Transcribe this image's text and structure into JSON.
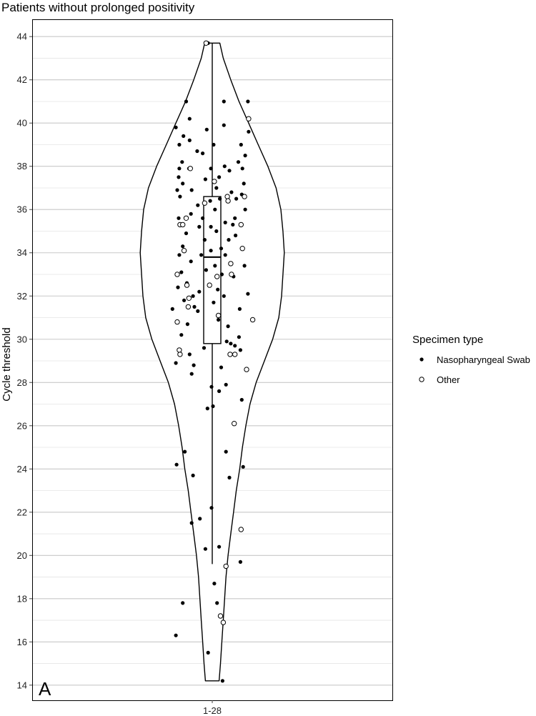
{
  "chart_data": {
    "type": "violin",
    "title": "Patients without prolonged positivity",
    "xlabel": "",
    "ylabel": "Cycle threshold",
    "categories": [
      "1-28"
    ],
    "ylim": [
      13.3,
      44.8
    ],
    "yticks": [
      14,
      16,
      18,
      20,
      22,
      24,
      26,
      28,
      30,
      32,
      34,
      36,
      38,
      40,
      42,
      44
    ],
    "ytick_labels": [
      "14",
      "16",
      "18",
      "20",
      "22",
      "24",
      "26",
      "28",
      "30",
      "32",
      "34",
      "36",
      "38",
      "40",
      "42",
      "44"
    ],
    "grid": true,
    "panel_label": "A",
    "legend": {
      "title": "Specimen type",
      "placement": "right",
      "entries": [
        {
          "label": "Nasopharyngeal Swab",
          "marker": "filled-circle"
        },
        {
          "label": "Other",
          "marker": "open-circle"
        }
      ]
    },
    "boxplot": {
      "q1": 29.8,
      "median": 33.8,
      "q3": 36.6,
      "whisker_low": 19.6,
      "whisker_high": 43.7
    },
    "violin_density": [
      {
        "y": 14.2,
        "halfwidth": 0.1
      },
      {
        "y": 15.0,
        "halfwidth": 0.12
      },
      {
        "y": 16.0,
        "halfwidth": 0.14
      },
      {
        "y": 17.0,
        "halfwidth": 0.16
      },
      {
        "y": 18.0,
        "halfwidth": 0.18
      },
      {
        "y": 19.0,
        "halfwidth": 0.2
      },
      {
        "y": 20.0,
        "halfwidth": 0.23
      },
      {
        "y": 21.0,
        "halfwidth": 0.27
      },
      {
        "y": 22.0,
        "halfwidth": 0.31
      },
      {
        "y": 23.0,
        "halfwidth": 0.35
      },
      {
        "y": 24.0,
        "halfwidth": 0.4
      },
      {
        "y": 25.0,
        "halfwidth": 0.44
      },
      {
        "y": 26.0,
        "halfwidth": 0.49
      },
      {
        "y": 27.0,
        "halfwidth": 0.55
      },
      {
        "y": 28.0,
        "halfwidth": 0.64
      },
      {
        "y": 29.0,
        "halfwidth": 0.76
      },
      {
        "y": 30.0,
        "halfwidth": 0.88
      },
      {
        "y": 31.0,
        "halfwidth": 0.97
      },
      {
        "y": 32.0,
        "halfwidth": 1.01
      },
      {
        "y": 33.0,
        "halfwidth": 1.03
      },
      {
        "y": 34.0,
        "halfwidth": 1.05
      },
      {
        "y": 35.0,
        "halfwidth": 1.03
      },
      {
        "y": 36.0,
        "halfwidth": 1.0
      },
      {
        "y": 37.0,
        "halfwidth": 0.93
      },
      {
        "y": 38.0,
        "halfwidth": 0.81
      },
      {
        "y": 39.0,
        "halfwidth": 0.67
      },
      {
        "y": 40.0,
        "halfwidth": 0.53
      },
      {
        "y": 41.0,
        "halfwidth": 0.39
      },
      {
        "y": 42.0,
        "halfwidth": 0.27
      },
      {
        "y": 43.0,
        "halfwidth": 0.16
      },
      {
        "y": 43.7,
        "halfwidth": 0.11
      }
    ],
    "series": [
      {
        "name": "Nasopharyngeal Swab",
        "points": [
          [
            -0.06,
            43.7
          ],
          [
            -0.38,
            41.0
          ],
          [
            0.17,
            41.0
          ],
          [
            0.52,
            41.0
          ],
          [
            -0.33,
            40.2
          ],
          [
            -0.53,
            39.8
          ],
          [
            0.17,
            39.9
          ],
          [
            -0.08,
            39.7
          ],
          [
            -0.42,
            39.4
          ],
          [
            -0.33,
            39.2
          ],
          [
            -0.48,
            39.0
          ],
          [
            0.02,
            39.0
          ],
          [
            0.53,
            39.6
          ],
          [
            0.42,
            39.0
          ],
          [
            -0.22,
            38.7
          ],
          [
            -0.14,
            38.6
          ],
          [
            0.48,
            38.5
          ],
          [
            -0.44,
            38.2
          ],
          [
            0.38,
            38.2
          ],
          [
            0.18,
            38.0
          ],
          [
            -0.48,
            37.9
          ],
          [
            -0.34,
            37.9
          ],
          [
            -0.02,
            37.9
          ],
          [
            0.44,
            37.9
          ],
          [
            0.25,
            37.8
          ],
          [
            0.1,
            37.5
          ],
          [
            -0.49,
            37.5
          ],
          [
            -0.1,
            37.4
          ],
          [
            0.46,
            37.2
          ],
          [
            -0.43,
            37.2
          ],
          [
            -0.3,
            36.9
          ],
          [
            0.06,
            37.0
          ],
          [
            0.28,
            36.8
          ],
          [
            -0.51,
            36.9
          ],
          [
            0.43,
            36.7
          ],
          [
            -0.47,
            36.6
          ],
          [
            0.11,
            36.5
          ],
          [
            -0.03,
            36.4
          ],
          [
            0.22,
            36.4
          ],
          [
            0.35,
            36.5
          ],
          [
            -0.21,
            36.2
          ],
          [
            0.04,
            36.0
          ],
          [
            0.48,
            36.0
          ],
          [
            -0.49,
            35.6
          ],
          [
            -0.31,
            35.8
          ],
          [
            0.33,
            35.6
          ],
          [
            -0.14,
            35.6
          ],
          [
            0.19,
            35.4
          ],
          [
            -0.02,
            35.2
          ],
          [
            -0.19,
            35.2
          ],
          [
            0.3,
            35.3
          ],
          [
            -0.38,
            34.9
          ],
          [
            0.06,
            35.0
          ],
          [
            0.24,
            34.6
          ],
          [
            0.34,
            34.8
          ],
          [
            -0.43,
            34.3
          ],
          [
            -0.11,
            34.6
          ],
          [
            0.13,
            34.2
          ],
          [
            -0.02,
            34.1
          ],
          [
            -0.48,
            33.9
          ],
          [
            -0.16,
            33.9
          ],
          [
            0.19,
            33.9
          ],
          [
            0.27,
            33.5
          ],
          [
            -0.31,
            33.6
          ],
          [
            0.04,
            33.4
          ],
          [
            0.47,
            33.4
          ],
          [
            -0.45,
            33.1
          ],
          [
            -0.09,
            33.2
          ],
          [
            0.14,
            33.0
          ],
          [
            0.31,
            32.9
          ],
          [
            -0.37,
            32.6
          ],
          [
            -0.5,
            32.4
          ],
          [
            0.08,
            32.3
          ],
          [
            -0.19,
            32.2
          ],
          [
            0.52,
            32.1
          ],
          [
            -0.28,
            32.0
          ],
          [
            0.17,
            32.0
          ],
          [
            -0.41,
            31.8
          ],
          [
            0.02,
            31.7
          ],
          [
            -0.26,
            31.5
          ],
          [
            0.4,
            31.4
          ],
          [
            -0.58,
            31.4
          ],
          [
            -0.21,
            31.3
          ],
          [
            0.09,
            30.9
          ],
          [
            0.23,
            30.6
          ],
          [
            -0.36,
            30.7
          ],
          [
            -0.45,
            30.2
          ],
          [
            0.39,
            30.1
          ],
          [
            0.21,
            29.9
          ],
          [
            0.27,
            29.8
          ],
          [
            0.33,
            29.7
          ],
          [
            -0.12,
            29.6
          ],
          [
            0.41,
            29.5
          ],
          [
            -0.33,
            29.3
          ],
          [
            -0.53,
            28.9
          ],
          [
            -0.27,
            28.8
          ],
          [
            0.13,
            28.7
          ],
          [
            -0.3,
            28.4
          ],
          [
            0.2,
            27.9
          ],
          [
            -0.01,
            27.8
          ],
          [
            0.1,
            27.6
          ],
          [
            0.43,
            27.2
          ],
          [
            -0.07,
            26.8
          ],
          [
            0.01,
            26.9
          ],
          [
            -0.4,
            24.8
          ],
          [
            -0.52,
            24.2
          ],
          [
            0.45,
            24.1
          ],
          [
            -0.28,
            23.7
          ],
          [
            0.25,
            23.6
          ],
          [
            -0.01,
            22.2
          ],
          [
            -0.18,
            21.7
          ],
          [
            -0.3,
            21.5
          ],
          [
            -0.1,
            20.3
          ],
          [
            0.1,
            20.4
          ],
          [
            0.41,
            19.7
          ],
          [
            0.03,
            18.7
          ],
          [
            0.07,
            17.8
          ],
          [
            -0.43,
            17.8
          ],
          [
            -0.53,
            16.3
          ],
          [
            -0.06,
            15.5
          ],
          [
            0.15,
            14.2
          ],
          [
            0.2,
            24.8
          ]
        ]
      },
      {
        "name": "Other",
        "points": [
          [
            -0.09,
            43.7
          ],
          [
            0.53,
            40.2
          ],
          [
            -0.32,
            37.9
          ],
          [
            0.03,
            37.3
          ],
          [
            0.22,
            36.6
          ],
          [
            0.47,
            36.6
          ],
          [
            0.23,
            36.4
          ],
          [
            -0.11,
            36.3
          ],
          [
            -0.47,
            35.3
          ],
          [
            -0.43,
            35.3
          ],
          [
            -0.38,
            35.6
          ],
          [
            0.42,
            35.3
          ],
          [
            -0.41,
            34.1
          ],
          [
            0.44,
            34.2
          ],
          [
            0.27,
            33.5
          ],
          [
            0.28,
            33.0
          ],
          [
            -0.51,
            33.0
          ],
          [
            -0.04,
            32.5
          ],
          [
            0.07,
            32.9
          ],
          [
            -0.37,
            32.5
          ],
          [
            -0.34,
            31.9
          ],
          [
            -0.35,
            31.5
          ],
          [
            0.09,
            31.1
          ],
          [
            -0.51,
            30.8
          ],
          [
            0.59,
            30.9
          ],
          [
            -0.48,
            29.5
          ],
          [
            -0.47,
            29.3
          ],
          [
            0.33,
            29.3
          ],
          [
            0.26,
            29.3
          ],
          [
            0.5,
            28.6
          ],
          [
            0.32,
            26.1
          ],
          [
            0.42,
            21.2
          ],
          [
            0.2,
            19.5
          ],
          [
            0.12,
            17.2
          ],
          [
            0.16,
            16.9
          ]
        ]
      }
    ]
  }
}
